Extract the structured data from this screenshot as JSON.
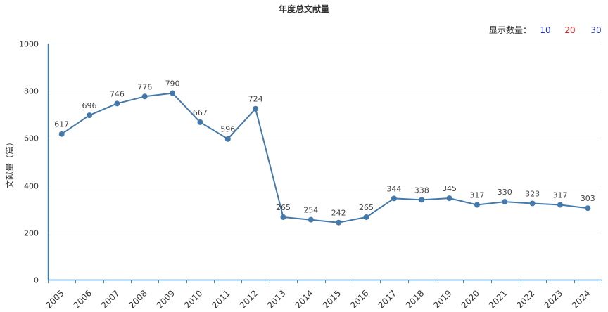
{
  "chart_data": {
    "type": "line",
    "title": "年度总文献量",
    "xlabel": "",
    "ylabel": "文献量（篇）",
    "ylim": [
      0,
      1000
    ],
    "yticks": [
      "0",
      "200",
      "400",
      "600",
      "800",
      "1000"
    ],
    "categories": [
      "2005",
      "2006",
      "2007",
      "2008",
      "2009",
      "2010",
      "2011",
      "2012",
      "2013",
      "2014",
      "2015",
      "2016",
      "2017",
      "2018",
      "2019",
      "2020",
      "2021",
      "2022",
      "2023",
      "2024"
    ],
    "series": [
      {
        "values": [
          617,
          696,
          746,
          776,
          790,
          667,
          596,
          724,
          265,
          254,
          242,
          265,
          344,
          338,
          345,
          317,
          330,
          323,
          317,
          303
        ],
        "color": "#4479a9"
      }
    ],
    "data_labels": true,
    "grid": "horizontal"
  },
  "display_control": {
    "label": "显示数量：",
    "options": [
      {
        "label": "10",
        "color": "#2233cc"
      },
      {
        "label": "20",
        "color": "#dd2222"
      },
      {
        "label": "30",
        "color": "#223399"
      }
    ]
  }
}
